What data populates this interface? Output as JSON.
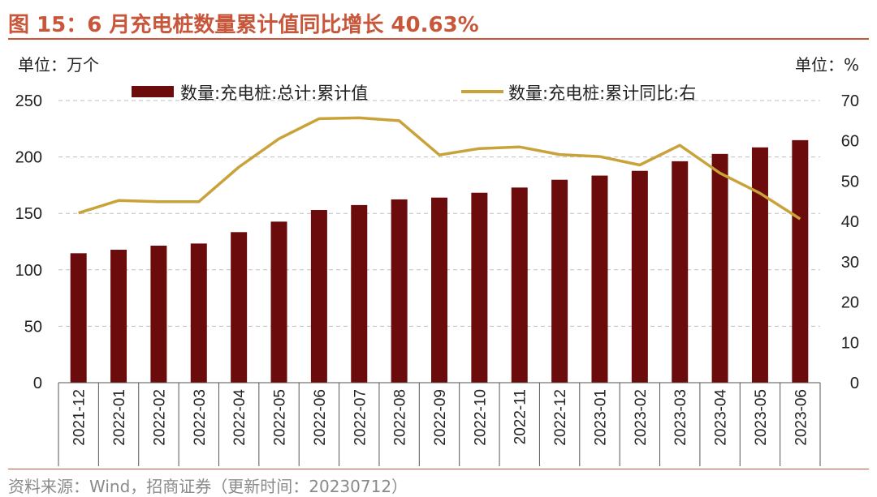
{
  "title": "图 15：6 月充电桩数量累计值同比增长 40.63%",
  "unit_left": "单位：万个",
  "unit_right": "单位：%",
  "source": "资料来源：Wind，招商证券（更新时间：20230712）",
  "colors": {
    "bar": "#6B0B0B",
    "line": "#C9A33A",
    "accent": "#C8563A",
    "grid": "#bfbfbf"
  },
  "chart_data": {
    "type": "bar",
    "categories": [
      "2021-12",
      "2022-01",
      "2022-02",
      "2022-03",
      "2022-04",
      "2022-05",
      "2022-06",
      "2022-07",
      "2022-08",
      "2022-09",
      "2022-10",
      "2022-11",
      "2022-12",
      "2023-01",
      "2023-02",
      "2023-03",
      "2023-04",
      "2023-05",
      "2023-06"
    ],
    "series": [
      {
        "name": "数量:充电桩:总计:累计值",
        "type": "bar",
        "axis": "left",
        "values": [
          114.7,
          117.8,
          121.4,
          123.3,
          133.4,
          142.7,
          153.0,
          157.4,
          162.4,
          164.0,
          168.3,
          172.9,
          179.8,
          183.5,
          187.7,
          196.2,
          202.7,
          208.5,
          214.9
        ]
      },
      {
        "name": "数量:充电桩:累计同比:右",
        "type": "line",
        "axis": "right",
        "values": [
          42.1,
          45.2,
          44.9,
          44.9,
          53.5,
          60.5,
          65.5,
          65.7,
          65.0,
          56.5,
          58.1,
          58.5,
          56.6,
          56.1,
          54.0,
          58.9,
          52.0,
          47.0,
          40.63
        ]
      }
    ],
    "ylim_left": [
      0,
      250
    ],
    "yticks_left": [
      0,
      50,
      100,
      150,
      200,
      250
    ],
    "ylim_right": [
      0,
      70
    ],
    "yticks_right": [
      0,
      10,
      20,
      30,
      40,
      50,
      60,
      70
    ],
    "grid": true,
    "legend_position": "top"
  }
}
